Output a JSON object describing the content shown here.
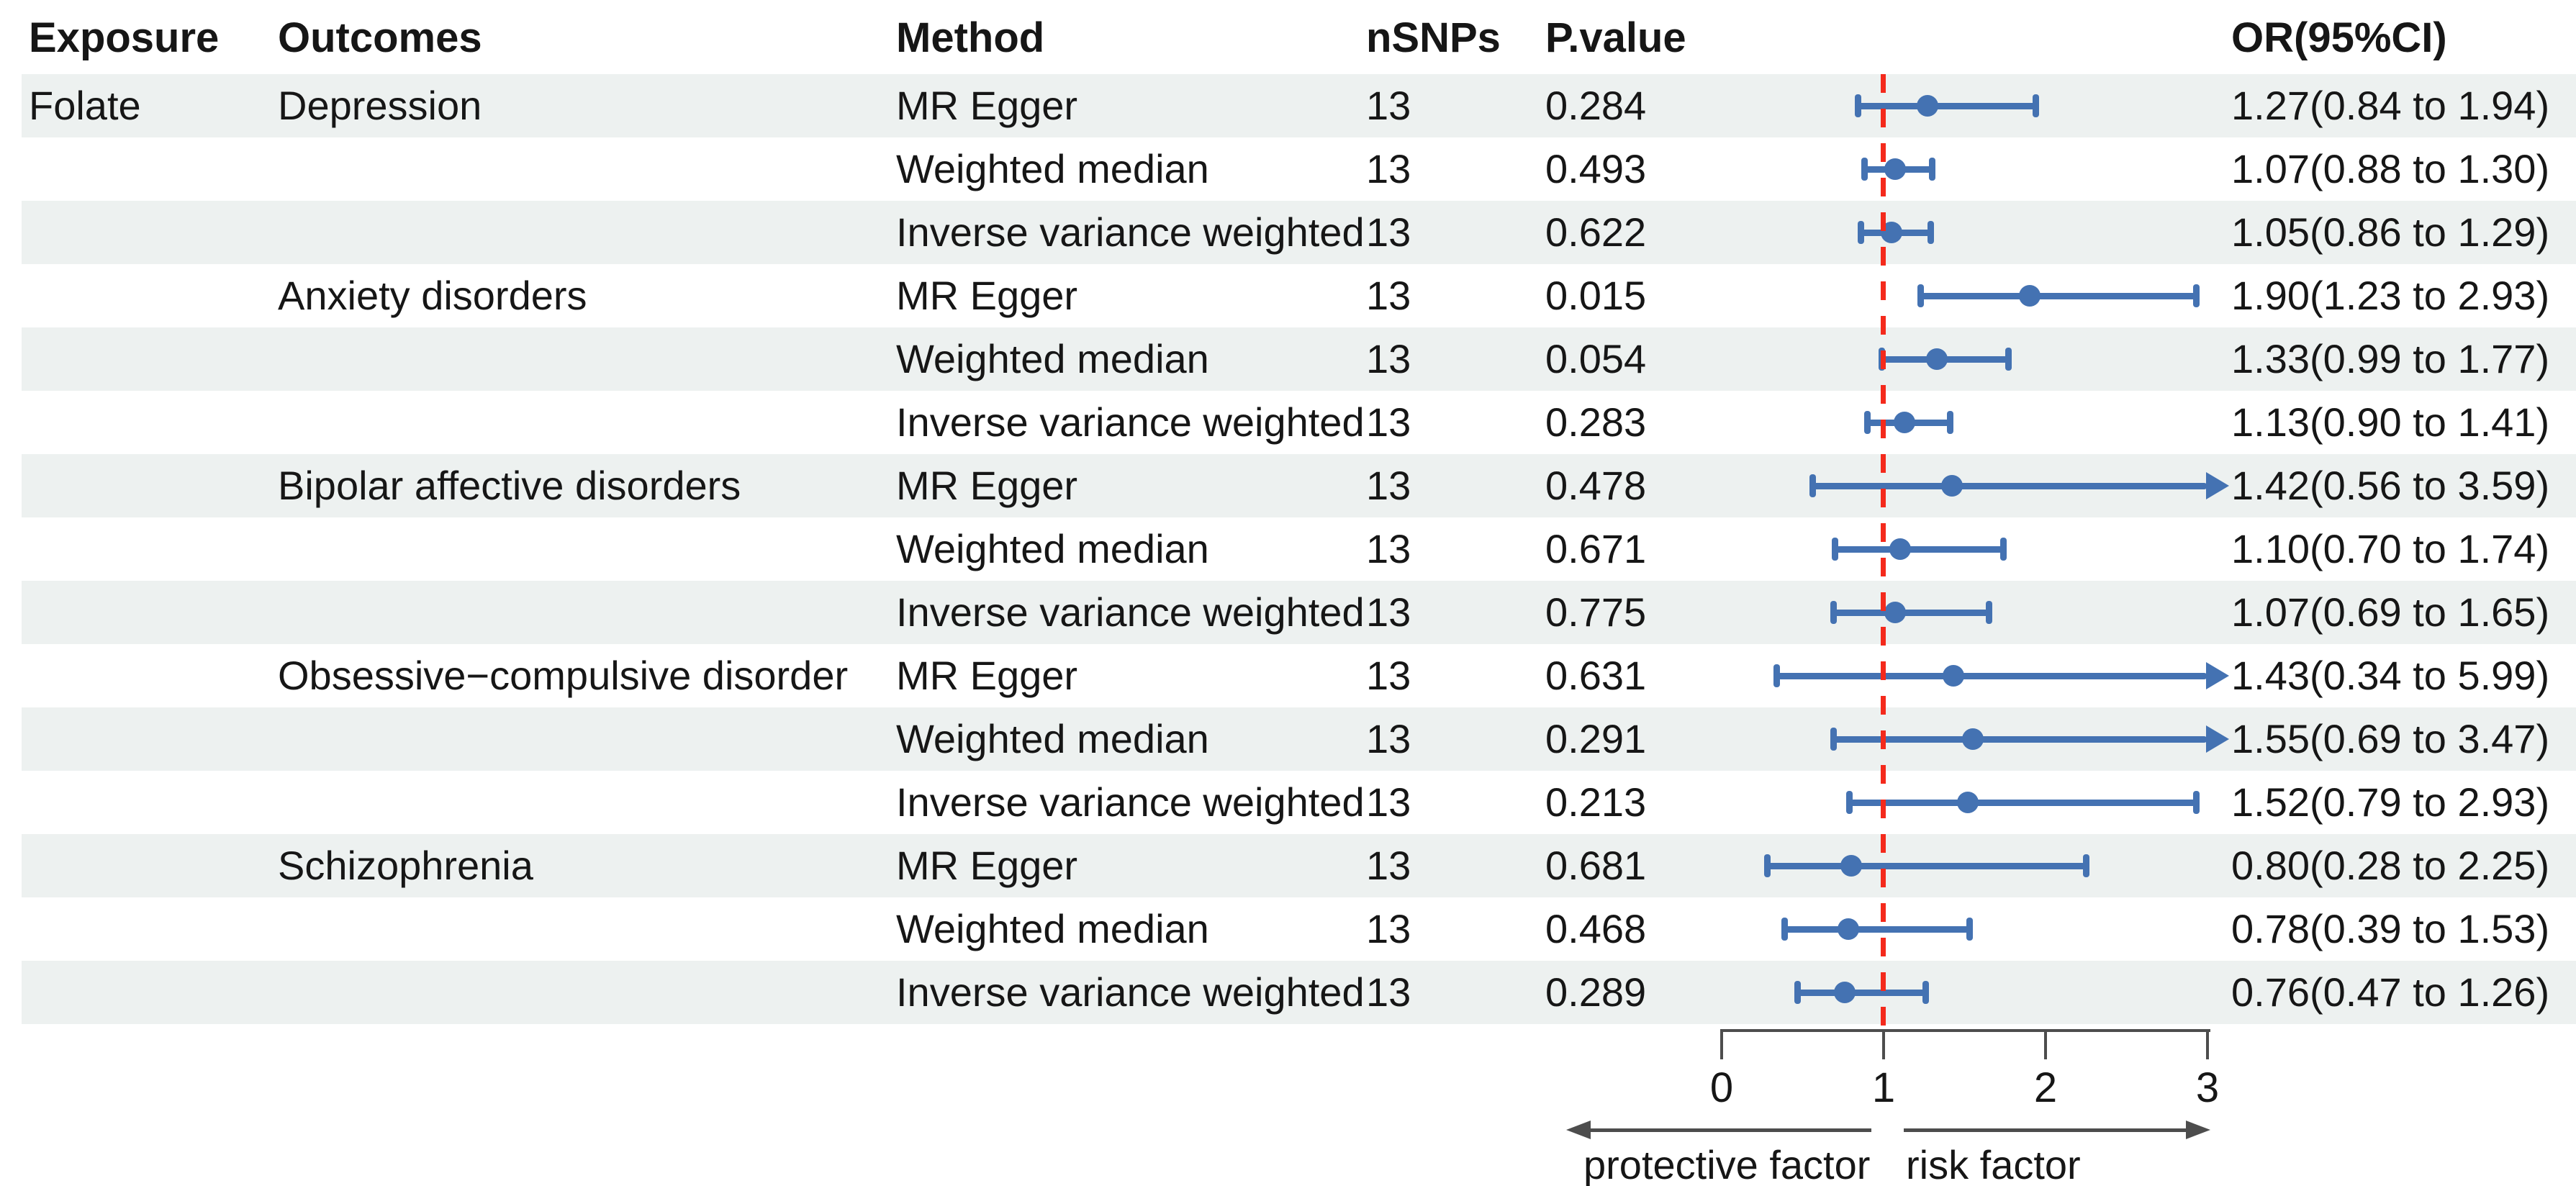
{
  "table": {
    "columns": [
      "Exposure",
      "Outcomes",
      "Method",
      "nSNPs",
      "P.value",
      "OR(95%CI)"
    ]
  },
  "chart_data": {
    "type": "forest",
    "title": "",
    "xlabel": "",
    "xlim": [
      0,
      3
    ],
    "exposure": "Folate",
    "rows": [
      {
        "exposure": "Folate",
        "outcome": "Depression",
        "method": "MR Egger",
        "nsnps": "13",
        "pvalue": "0.284",
        "or_text": "1.27(0.84 to 1.94)",
        "est": 1.27,
        "lo": 0.84,
        "hi": 1.94
      },
      {
        "exposure": "",
        "outcome": "",
        "method": "Weighted median",
        "nsnps": "13",
        "pvalue": "0.493",
        "or_text": "1.07(0.88 to 1.30)",
        "est": 1.07,
        "lo": 0.88,
        "hi": 1.3
      },
      {
        "exposure": "",
        "outcome": "",
        "method": "Inverse variance weighted",
        "nsnps": "13",
        "pvalue": "0.622",
        "or_text": "1.05(0.86 to 1.29)",
        "est": 1.05,
        "lo": 0.86,
        "hi": 1.29
      },
      {
        "exposure": "",
        "outcome": "Anxiety disorders",
        "method": "MR Egger",
        "nsnps": "13",
        "pvalue": "0.015",
        "or_text": "1.90(1.23 to 2.93)",
        "est": 1.9,
        "lo": 1.23,
        "hi": 2.93
      },
      {
        "exposure": "",
        "outcome": "",
        "method": "Weighted median",
        "nsnps": "13",
        "pvalue": "0.054",
        "or_text": "1.33(0.99 to 1.77)",
        "est": 1.33,
        "lo": 0.99,
        "hi": 1.77
      },
      {
        "exposure": "",
        "outcome": "",
        "method": "Inverse variance weighted",
        "nsnps": "13",
        "pvalue": "0.283",
        "or_text": "1.13(0.90 to 1.41)",
        "est": 1.13,
        "lo": 0.9,
        "hi": 1.41
      },
      {
        "exposure": "",
        "outcome": "Bipolar affective disorders",
        "method": "MR Egger",
        "nsnps": "13",
        "pvalue": "0.478",
        "or_text": "1.42(0.56 to 3.59)",
        "est": 1.42,
        "lo": 0.56,
        "hi": 3.59
      },
      {
        "exposure": "",
        "outcome": "",
        "method": "Weighted median",
        "nsnps": "13",
        "pvalue": "0.671",
        "or_text": "1.10(0.70 to 1.74)",
        "est": 1.1,
        "lo": 0.7,
        "hi": 1.74
      },
      {
        "exposure": "",
        "outcome": "",
        "method": "Inverse variance weighted",
        "nsnps": "13",
        "pvalue": "0.775",
        "or_text": "1.07(0.69 to 1.65)",
        "est": 1.07,
        "lo": 0.69,
        "hi": 1.65
      },
      {
        "exposure": "",
        "outcome": "Obsessive−compulsive disorder",
        "method": "MR Egger",
        "nsnps": "13",
        "pvalue": "0.631",
        "or_text": "1.43(0.34 to 5.99)",
        "est": 1.43,
        "lo": 0.34,
        "hi": 5.99
      },
      {
        "exposure": "",
        "outcome": "",
        "method": "Weighted median",
        "nsnps": "13",
        "pvalue": "0.291",
        "or_text": "1.55(0.69 to 3.47)",
        "est": 1.55,
        "lo": 0.69,
        "hi": 3.47
      },
      {
        "exposure": "",
        "outcome": "",
        "method": "Inverse variance weighted",
        "nsnps": "13",
        "pvalue": "0.213",
        "or_text": "1.52(0.79 to 2.93)",
        "est": 1.52,
        "lo": 0.79,
        "hi": 2.93
      },
      {
        "exposure": "",
        "outcome": "Schizophrenia",
        "method": "MR Egger",
        "nsnps": "13",
        "pvalue": "0.681",
        "or_text": "0.80(0.28 to 2.25)",
        "est": 0.8,
        "lo": 0.28,
        "hi": 2.25
      },
      {
        "exposure": "",
        "outcome": "",
        "method": "Weighted median",
        "nsnps": "13",
        "pvalue": "0.468",
        "or_text": "0.78(0.39 to 1.53)",
        "est": 0.78,
        "lo": 0.39,
        "hi": 1.53
      },
      {
        "exposure": "",
        "outcome": "",
        "method": "Inverse variance weighted",
        "nsnps": "13",
        "pvalue": "0.289",
        "or_text": "0.76(0.47 to 1.26)",
        "est": 0.76,
        "lo": 0.47,
        "hi": 1.26
      }
    ],
    "axis": {
      "ticks": [
        0,
        1,
        2,
        3
      ],
      "tick_labels": [
        "0",
        "1",
        "2",
        "3"
      ],
      "ref_line": 1
    },
    "annotations": {
      "left": "protective factor",
      "right": "risk factor"
    },
    "legend": "none",
    "grid": "off",
    "colors": {
      "marker": "#4472b2",
      "ref_line": "#f42a1c",
      "band": "#edf1f0",
      "axis": "#4d4d4d",
      "text": "#161616"
    }
  }
}
